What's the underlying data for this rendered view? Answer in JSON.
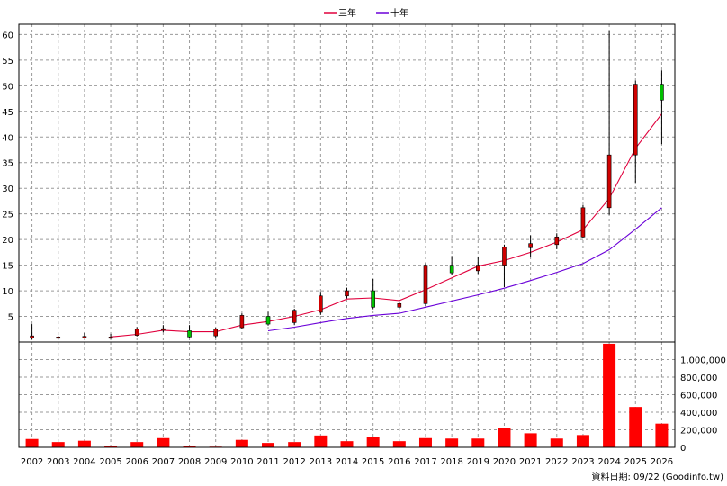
{
  "chart_data": [
    {
      "type": "candlestick",
      "title": "",
      "legend": {
        "position": "top-center",
        "entries": [
          {
            "name": "三年",
            "color": "#e0003c"
          },
          {
            "name": "十年",
            "color": "#6a00d8"
          }
        ]
      },
      "colors": {
        "up": "#00c000",
        "down": "#d00000"
      },
      "ylim": [
        0,
        62
      ],
      "yticks": [
        5,
        10,
        15,
        20,
        25,
        30,
        35,
        40,
        45,
        50,
        55,
        60
      ],
      "grid": true,
      "categories": [
        "2002",
        "2003",
        "2004",
        "2005",
        "2006",
        "2007",
        "2008",
        "2009",
        "2010",
        "2011",
        "2012",
        "2013",
        "2014",
        "2015",
        "2016",
        "2017",
        "2018",
        "2019",
        "2020",
        "2021",
        "2022",
        "2023",
        "2024",
        "2025",
        "2026"
      ],
      "candles": [
        {
          "open": 1.2,
          "close": 0.8,
          "high": 3.5,
          "low": 0.5
        },
        {
          "open": 1.0,
          "close": 0.8,
          "high": 1.2,
          "low": 0.6
        },
        {
          "open": 1.1,
          "close": 0.9,
          "high": 1.8,
          "low": 0.7
        },
        {
          "open": 1.0,
          "close": 0.9,
          "high": 1.6,
          "low": 0.6
        },
        {
          "open": 2.5,
          "close": 1.3,
          "high": 2.9,
          "low": 1.1
        },
        {
          "open": 2.6,
          "close": 2.3,
          "high": 3.3,
          "low": 1.9
        },
        {
          "open": 1.0,
          "close": 2.2,
          "high": 3.3,
          "low": 0.8
        },
        {
          "open": 2.5,
          "close": 1.2,
          "high": 2.8,
          "low": 0.8
        },
        {
          "open": 5.2,
          "close": 2.8,
          "high": 5.6,
          "low": 2.6
        },
        {
          "open": 3.5,
          "close": 5.0,
          "high": 5.9,
          "low": 3.2
        },
        {
          "open": 6.2,
          "close": 3.8,
          "high": 6.5,
          "low": 3.3
        },
        {
          "open": 9.0,
          "close": 5.8,
          "high": 9.8,
          "low": 5.3
        },
        {
          "open": 10.0,
          "close": 9.0,
          "high": 10.6,
          "low": 8.5
        },
        {
          "open": 6.8,
          "close": 10.0,
          "high": 12.3,
          "low": 6.4
        },
        {
          "open": 7.5,
          "close": 6.8,
          "high": 7.9,
          "low": 6.4
        },
        {
          "open": 15.0,
          "close": 7.5,
          "high": 15.4,
          "low": 7.0
        },
        {
          "open": 13.5,
          "close": 15.0,
          "high": 16.8,
          "low": 13.0
        },
        {
          "open": 15.0,
          "close": 13.9,
          "high": 16.7,
          "low": 13.3
        },
        {
          "open": 18.5,
          "close": 15.0,
          "high": 19.0,
          "low": 10.7
        },
        {
          "open": 19.2,
          "close": 18.4,
          "high": 20.8,
          "low": 16.5
        },
        {
          "open": 20.5,
          "close": 19.0,
          "high": 21.2,
          "low": 18.1
        },
        {
          "open": 26.2,
          "close": 20.5,
          "high": 26.7,
          "low": 20.3
        },
        {
          "open": 36.5,
          "close": 26.2,
          "high": 60.8,
          "low": 24.8
        },
        {
          "open": 50.3,
          "close": 36.5,
          "high": 51.0,
          "low": 31.1
        },
        {
          "open": 47.2,
          "close": 50.3,
          "high": 53.0,
          "low": 38.6
        }
      ],
      "series": [
        {
          "name": "三年",
          "color": "#e0003c",
          "values": [
            null,
            null,
            null,
            1.0,
            1.5,
            2.3,
            2.0,
            2.0,
            3.3,
            4.0,
            5.0,
            6.3,
            8.4,
            8.6,
            8.1,
            10.2,
            12.5,
            14.8,
            15.9,
            17.5,
            19.5,
            21.9,
            28.0,
            37.8,
            44.5
          ]
        },
        {
          "name": "十年",
          "color": "#6a00d8",
          "values": [
            null,
            null,
            null,
            null,
            null,
            null,
            null,
            null,
            null,
            2.2,
            2.9,
            3.8,
            4.6,
            5.2,
            5.6,
            6.8,
            8.0,
            9.2,
            10.5,
            12.0,
            13.6,
            15.3,
            18.0,
            22.0,
            26.2
          ]
        }
      ]
    },
    {
      "type": "bar",
      "title": "",
      "color": "#ff0000",
      "ylim": [
        0,
        1200000
      ],
      "yticks": [
        0,
        200000,
        400000,
        600000,
        800000,
        1000000
      ],
      "ytick_labels": [
        "0",
        "200,000",
        "400,000",
        "600,000",
        "800,000",
        "1,000,000"
      ],
      "grid": true,
      "categories": [
        "2002",
        "2003",
        "2004",
        "2005",
        "2006",
        "2007",
        "2008",
        "2009",
        "2010",
        "2011",
        "2012",
        "2013",
        "2014",
        "2015",
        "2016",
        "2017",
        "2018",
        "2019",
        "2020",
        "2021",
        "2022",
        "2023",
        "2024",
        "2025",
        "2026"
      ],
      "values": [
        95000,
        60000,
        75000,
        15000,
        60000,
        105000,
        20000,
        8000,
        85000,
        50000,
        60000,
        135000,
        70000,
        120000,
        70000,
        105000,
        100000,
        100000,
        225000,
        160000,
        100000,
        140000,
        1180000,
        460000,
        270000
      ]
    }
  ],
  "footer": {
    "source": "資料日期: 09/22 (Goodinfo.tw)"
  }
}
